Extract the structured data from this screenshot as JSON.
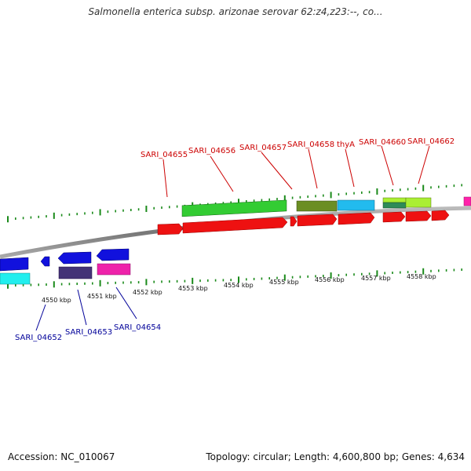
{
  "title": "Salmonella enterica subsp. arizonae serovar 62:z4,z23:--, co...",
  "footer": {
    "accession": "Accession: NC_010067",
    "summary": "Topology: circular; Length: 4,600,800 bp; Genes: 4,634"
  },
  "colors": {
    "backbone": "#8a8a8a",
    "tick": "#1a8a1a",
    "forward_label": "#cc0000",
    "reverse_label": "#000099"
  },
  "kbp_labels": [
    "4550 kbp",
    "4551 kbp",
    "4552 kbp",
    "4553 kbp",
    "4554 kbp",
    "4555 kbp",
    "4556 kbp",
    "4557 kbp",
    "4558 kbp"
  ],
  "forward_gene_labels": [
    "SARI_04655",
    "SARI_04656",
    "SARI_04657",
    "SARI_04658",
    "thyA",
    "SARI_04660",
    "SARI_04662"
  ],
  "reverse_gene_labels": [
    "SARI_04652",
    "SARI_04653",
    "SARI_04654"
  ]
}
